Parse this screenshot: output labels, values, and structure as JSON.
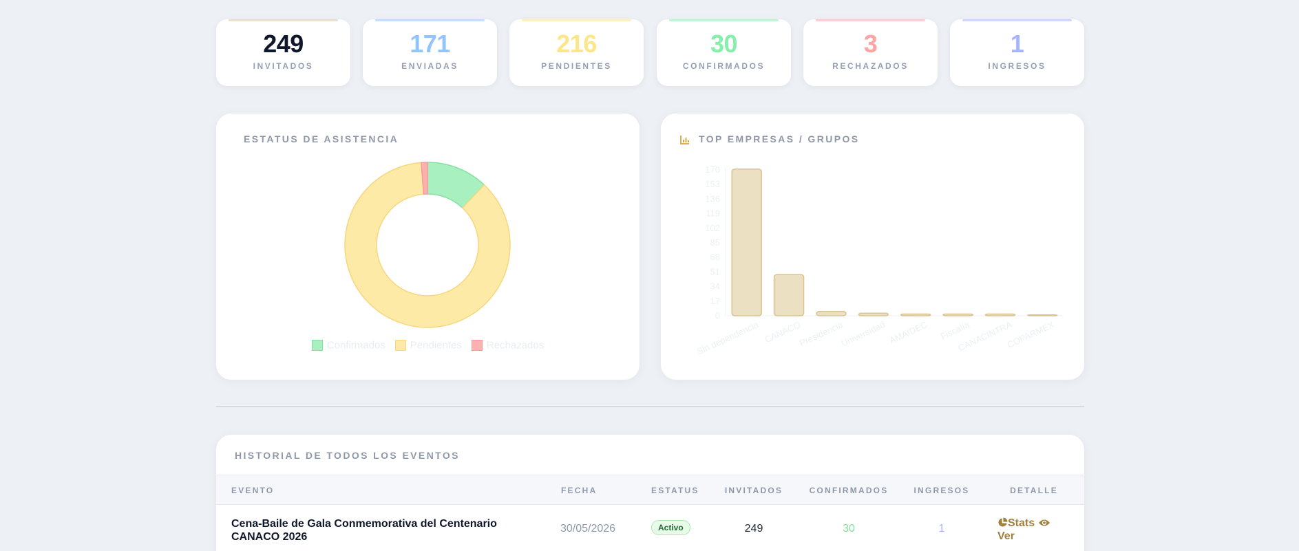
{
  "stats": [
    {
      "value": "249",
      "label": "INVITADOS",
      "color": "#0f172a",
      "accent_bar": "#d9c7a0"
    },
    {
      "value": "171",
      "label": "ENVIADAS",
      "color": "#93c5fd",
      "accent_bar": "#93c5fd"
    },
    {
      "value": "216",
      "label": "PENDIENTES",
      "color": "#fde68a",
      "accent_bar": "#fde68a"
    },
    {
      "value": "30",
      "label": "CONFIRMADOS",
      "color": "#86efac",
      "accent_bar": "#86efac"
    },
    {
      "value": "3",
      "label": "RECHAZADOS",
      "color": "#fca5a5",
      "accent_bar": "#fca5a5"
    },
    {
      "value": "1",
      "label": "INGRESOS",
      "color": "#a5b4fc",
      "accent_bar": "#a5b4fc"
    }
  ],
  "attendance_card": {
    "title": "ESTATUS DE ASISTENCIA"
  },
  "companies_card": {
    "title": "TOP EMPRESAS / GRUPOS",
    "icon": "bar-chart-icon"
  },
  "chart_data": [
    {
      "type": "pie",
      "variant": "doughnut",
      "categories": [
        "Confirmados",
        "Pendientes",
        "Rechazados"
      ],
      "values": [
        30,
        216,
        3
      ],
      "colors": [
        "#a8f0bf",
        "#fdeaa7",
        "#fcb0b0"
      ],
      "borders": [
        "#86e0a3",
        "#f6d77c",
        "#f59c9c"
      ],
      "legend": "bottom"
    },
    {
      "type": "bar",
      "categories": [
        "Sin dependencia",
        "CANACO",
        "Presidencia",
        "Universidad",
        "AMAIDEC",
        "Fiscalía",
        "CANACINTRA",
        "COPARMEX"
      ],
      "values": [
        171,
        48,
        5,
        3,
        2,
        2,
        2,
        1
      ],
      "ylim": [
        0,
        170
      ],
      "yticks": [
        0,
        17,
        34,
        51,
        68,
        85,
        102,
        119,
        136,
        153,
        170
      ],
      "bar_color": "#ebe0c2",
      "bar_border": "#d9c48f",
      "grid": false
    }
  ],
  "history": {
    "title": "HISTORIAL DE TODOS LOS EVENTOS",
    "columns": [
      "EVENTO",
      "FECHA",
      "ESTATUS",
      "INVITADOS",
      "CONFIRMADOS",
      "INGRESOS",
      "DETALLE"
    ],
    "rows": [
      {
        "event": "Cena-Baile de Gala Conmemorativa del Centenario CANACO 2026",
        "date": "30/05/2026",
        "status": "Activo",
        "invited": "249",
        "confirmed": "30",
        "entries": "1",
        "stats_label": "Stats",
        "view_label": "Ver"
      }
    ]
  }
}
